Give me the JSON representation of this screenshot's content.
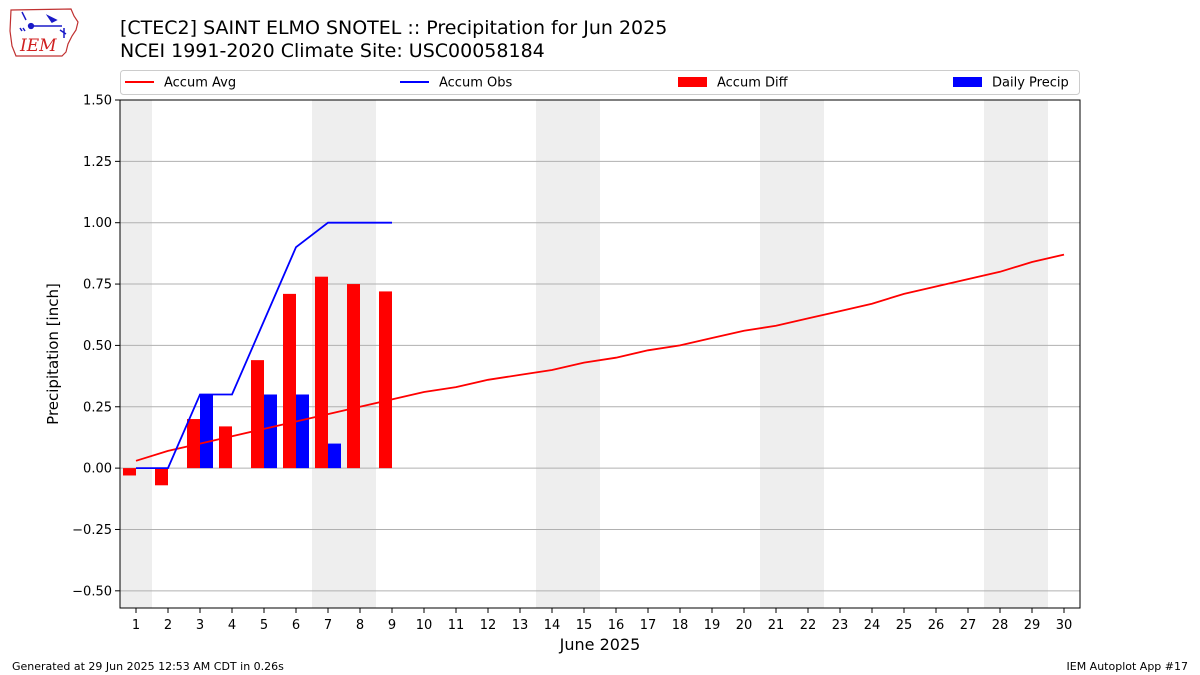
{
  "header": {
    "title_line1": "[CTEC2] SAINT ELMO SNOTEL :: Precipitation for Jun 2025",
    "title_line2": "NCEI 1991-2020 Climate Site: USC00058184"
  },
  "logo": {
    "text": "IEM",
    "icon": "iem-iowa-logo"
  },
  "footer": {
    "left": "Generated at 29 Jun 2025 12:53 AM CDT in 0.26s",
    "right": "IEM Autoplot App #17"
  },
  "chart_data": {
    "type": "bar",
    "xlabel": "June 2025",
    "ylabel": "Precipitation [inch]",
    "xlim": [
      0.5,
      30.5
    ],
    "ylim": [
      -0.57,
      1.5
    ],
    "x_ticks": [
      1,
      2,
      3,
      4,
      5,
      6,
      7,
      8,
      9,
      10,
      11,
      12,
      13,
      14,
      15,
      16,
      17,
      18,
      19,
      20,
      21,
      22,
      23,
      24,
      25,
      26,
      27,
      28,
      29,
      30
    ],
    "y_ticks": [
      -0.5,
      -0.25,
      0.0,
      0.25,
      0.5,
      0.75,
      1.0,
      1.25,
      1.5
    ],
    "y_tick_labels": [
      "−0.50",
      "−0.25",
      "0.00",
      "0.25",
      "0.50",
      "0.75",
      "1.00",
      "1.25",
      "1.50"
    ],
    "grid": "horizontal",
    "legend_position": "top",
    "weekend_shading_days": [
      [
        1,
        1
      ],
      [
        7,
        8
      ],
      [
        14,
        15
      ],
      [
        21,
        22
      ],
      [
        28,
        29
      ]
    ],
    "legend": [
      {
        "label": "Accum Avg",
        "kind": "line",
        "color": "#ff0000"
      },
      {
        "label": "Accum Obs",
        "kind": "line",
        "color": "#0000ff"
      },
      {
        "label": "Accum Diff",
        "kind": "bar",
        "color": "#ff0000"
      },
      {
        "label": "Daily Precip",
        "kind": "bar",
        "color": "#0000ff"
      }
    ],
    "series": [
      {
        "name": "Accum Avg",
        "type": "line",
        "color": "#ff0000",
        "x": [
          1,
          2,
          3,
          4,
          5,
          6,
          7,
          8,
          9,
          10,
          11,
          12,
          13,
          14,
          15,
          16,
          17,
          18,
          19,
          20,
          21,
          22,
          23,
          24,
          25,
          26,
          27,
          28,
          29,
          30
        ],
        "values": [
          0.03,
          0.07,
          0.1,
          0.13,
          0.16,
          0.19,
          0.22,
          0.25,
          0.28,
          0.31,
          0.33,
          0.36,
          0.38,
          0.4,
          0.43,
          0.45,
          0.48,
          0.5,
          0.53,
          0.56,
          0.58,
          0.61,
          0.64,
          0.67,
          0.71,
          0.74,
          0.77,
          0.8,
          0.84,
          0.87
        ]
      },
      {
        "name": "Accum Obs",
        "type": "line",
        "color": "#0000ff",
        "x": [
          1,
          2,
          3,
          4,
          5,
          6,
          7,
          8,
          9
        ],
        "values": [
          0.0,
          0.0,
          0.3,
          0.3,
          0.6,
          0.9,
          1.0,
          1.0,
          1.0
        ]
      },
      {
        "name": "Accum Diff",
        "type": "bar",
        "color": "#ff0000",
        "x": [
          1,
          2,
          3,
          4,
          5,
          6,
          7,
          8,
          9
        ],
        "values": [
          -0.03,
          -0.07,
          0.2,
          0.17,
          0.44,
          0.71,
          0.78,
          0.75,
          0.72
        ]
      },
      {
        "name": "Daily Precip",
        "type": "bar",
        "color": "#0000ff",
        "x": [
          3,
          5,
          6,
          7
        ],
        "values": [
          0.3,
          0.3,
          0.3,
          0.1
        ]
      }
    ]
  }
}
